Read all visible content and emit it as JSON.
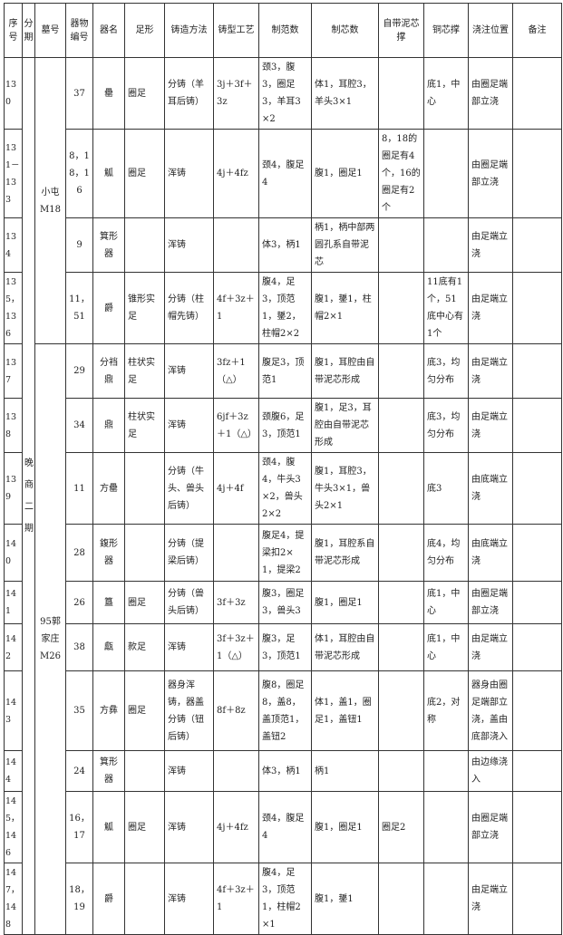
{
  "headers": [
    "序号",
    "分期",
    "墓号",
    "器物编号",
    "器名",
    "足形",
    "铸造方法",
    "铸型工艺",
    "制范数",
    "制芯数",
    "自带泥芯撑",
    "铜芯撑",
    "浇注位置",
    "备注"
  ],
  "period": "晚商二期",
  "tombs": [
    "小屯M18",
    "95郭家庄M26"
  ],
  "rows": [
    [
      "130",
      "37",
      "罍",
      "圈足",
      "分铸（羊耳后铸）",
      "3j＋3f＋3z",
      "颈3，腹3，圈足3，羊耳3×2",
      "体1，耳腔3，羊头3×1",
      "",
      "底1，中心",
      "由圈足端部立浇",
      ""
    ],
    [
      "131－133",
      "8，18，16",
      "觚",
      "圈足",
      "浑铸",
      "4j＋4fz",
      "颈4，腹足4",
      "腹1，圈足1",
      "8，18的圈足有4个，16的圈足有2个",
      "",
      "由圈足端部立浇",
      ""
    ],
    [
      "134",
      "9",
      "箕形器",
      "",
      "浑铸",
      "",
      "体3，柄1",
      "柄1，柄中部两圆孔系自带泥芯",
      "",
      "",
      "由足端立浇",
      ""
    ],
    [
      "135，136",
      "11，51",
      "爵",
      "锥形实足",
      "分铸（柱帽先铸）",
      "4f＋3z＋1",
      "腹4，足3，顶范1，鋬2，柱帽2×2",
      "腹1，鋬1，柱帽2×1",
      "",
      "11底有1个，51底中心有1个",
      "由足端立浇",
      ""
    ],
    [
      "137",
      "29",
      "分裆鼎",
      "柱状实足",
      "浑铸",
      "3fz＋1（△）",
      "腹足3，顶范1",
      "腹1，耳腔由自带泥芯形成",
      "",
      "底3，均匀分布",
      "由足端立浇",
      ""
    ],
    [
      "138",
      "34",
      "鼎",
      "柱状实足",
      "浑铸",
      "6jf＋3z＋1（△）",
      "颈腹6，足3，顶范1",
      "腹1，足3，耳腔由自带泥芯形成",
      "",
      "底3，均匀分布",
      "由足端立浇",
      ""
    ],
    [
      "139",
      "11",
      "方罍",
      "",
      "分铸（牛头、兽头后铸）",
      "4j＋4f",
      "颈4，腹4，牛头3×2，兽头2×2",
      "腹1，耳腔3，牛头3×1，兽头2×1",
      "",
      "底3",
      "由底端立浇",
      ""
    ],
    [
      "140",
      "28",
      "鍑形器",
      "",
      "分铸（提梁后铸）",
      "",
      "腹足4，提梁扣2×1，提梁2",
      "腹1，耳腔系自带泥芯形成",
      "",
      "底4，均匀分布",
      "由底端立浇",
      ""
    ],
    [
      "141",
      "26",
      "簋",
      "圈足",
      "分铸（兽头后铸）",
      "3f＋3z",
      "腹3，圈足3，兽头3",
      "腹1，圈足1",
      "",
      "底1，中心",
      "由圈足端部立浇",
      ""
    ],
    [
      "142",
      "38",
      "甗",
      "款足",
      "浑铸",
      "3f＋3z＋1（△）",
      "腹3，足3，顶范1",
      "体1，耳腔由自带泥芯形成",
      "",
      "底1，中心",
      "由足端立浇",
      ""
    ],
    [
      "143",
      "35",
      "方彝",
      "圈足",
      "器身浑铸，器盖分铸（钮后铸）",
      "8f＋8z",
      "腹8，圈足8，盖8，盖顶范1，盖钮2",
      "体1，盖1，圈足1，盖钮1",
      "",
      "底2，对称",
      "器身由圈足端部立浇，盖由底部浇入",
      ""
    ],
    [
      "144",
      "24",
      "箕形器",
      "",
      "浑铸",
      "",
      "体3，柄1",
      "柄1",
      "",
      "",
      "由边缘浇入",
      ""
    ],
    [
      "145，146",
      "16，17",
      "觚",
      "圈足",
      "浑铸",
      "4j＋4fz",
      "颈4，腹足4",
      "腹1，圈足1",
      "圈足2",
      "",
      "由圈足端部立浇",
      ""
    ],
    [
      "147，148",
      "18，19",
      "爵",
      "",
      "浑铸",
      "4f＋3z＋1",
      "腹4，足3，顶范1，柱帽2×1",
      "腹1，鋬1",
      "",
      "",
      "由足端立浇",
      ""
    ]
  ]
}
